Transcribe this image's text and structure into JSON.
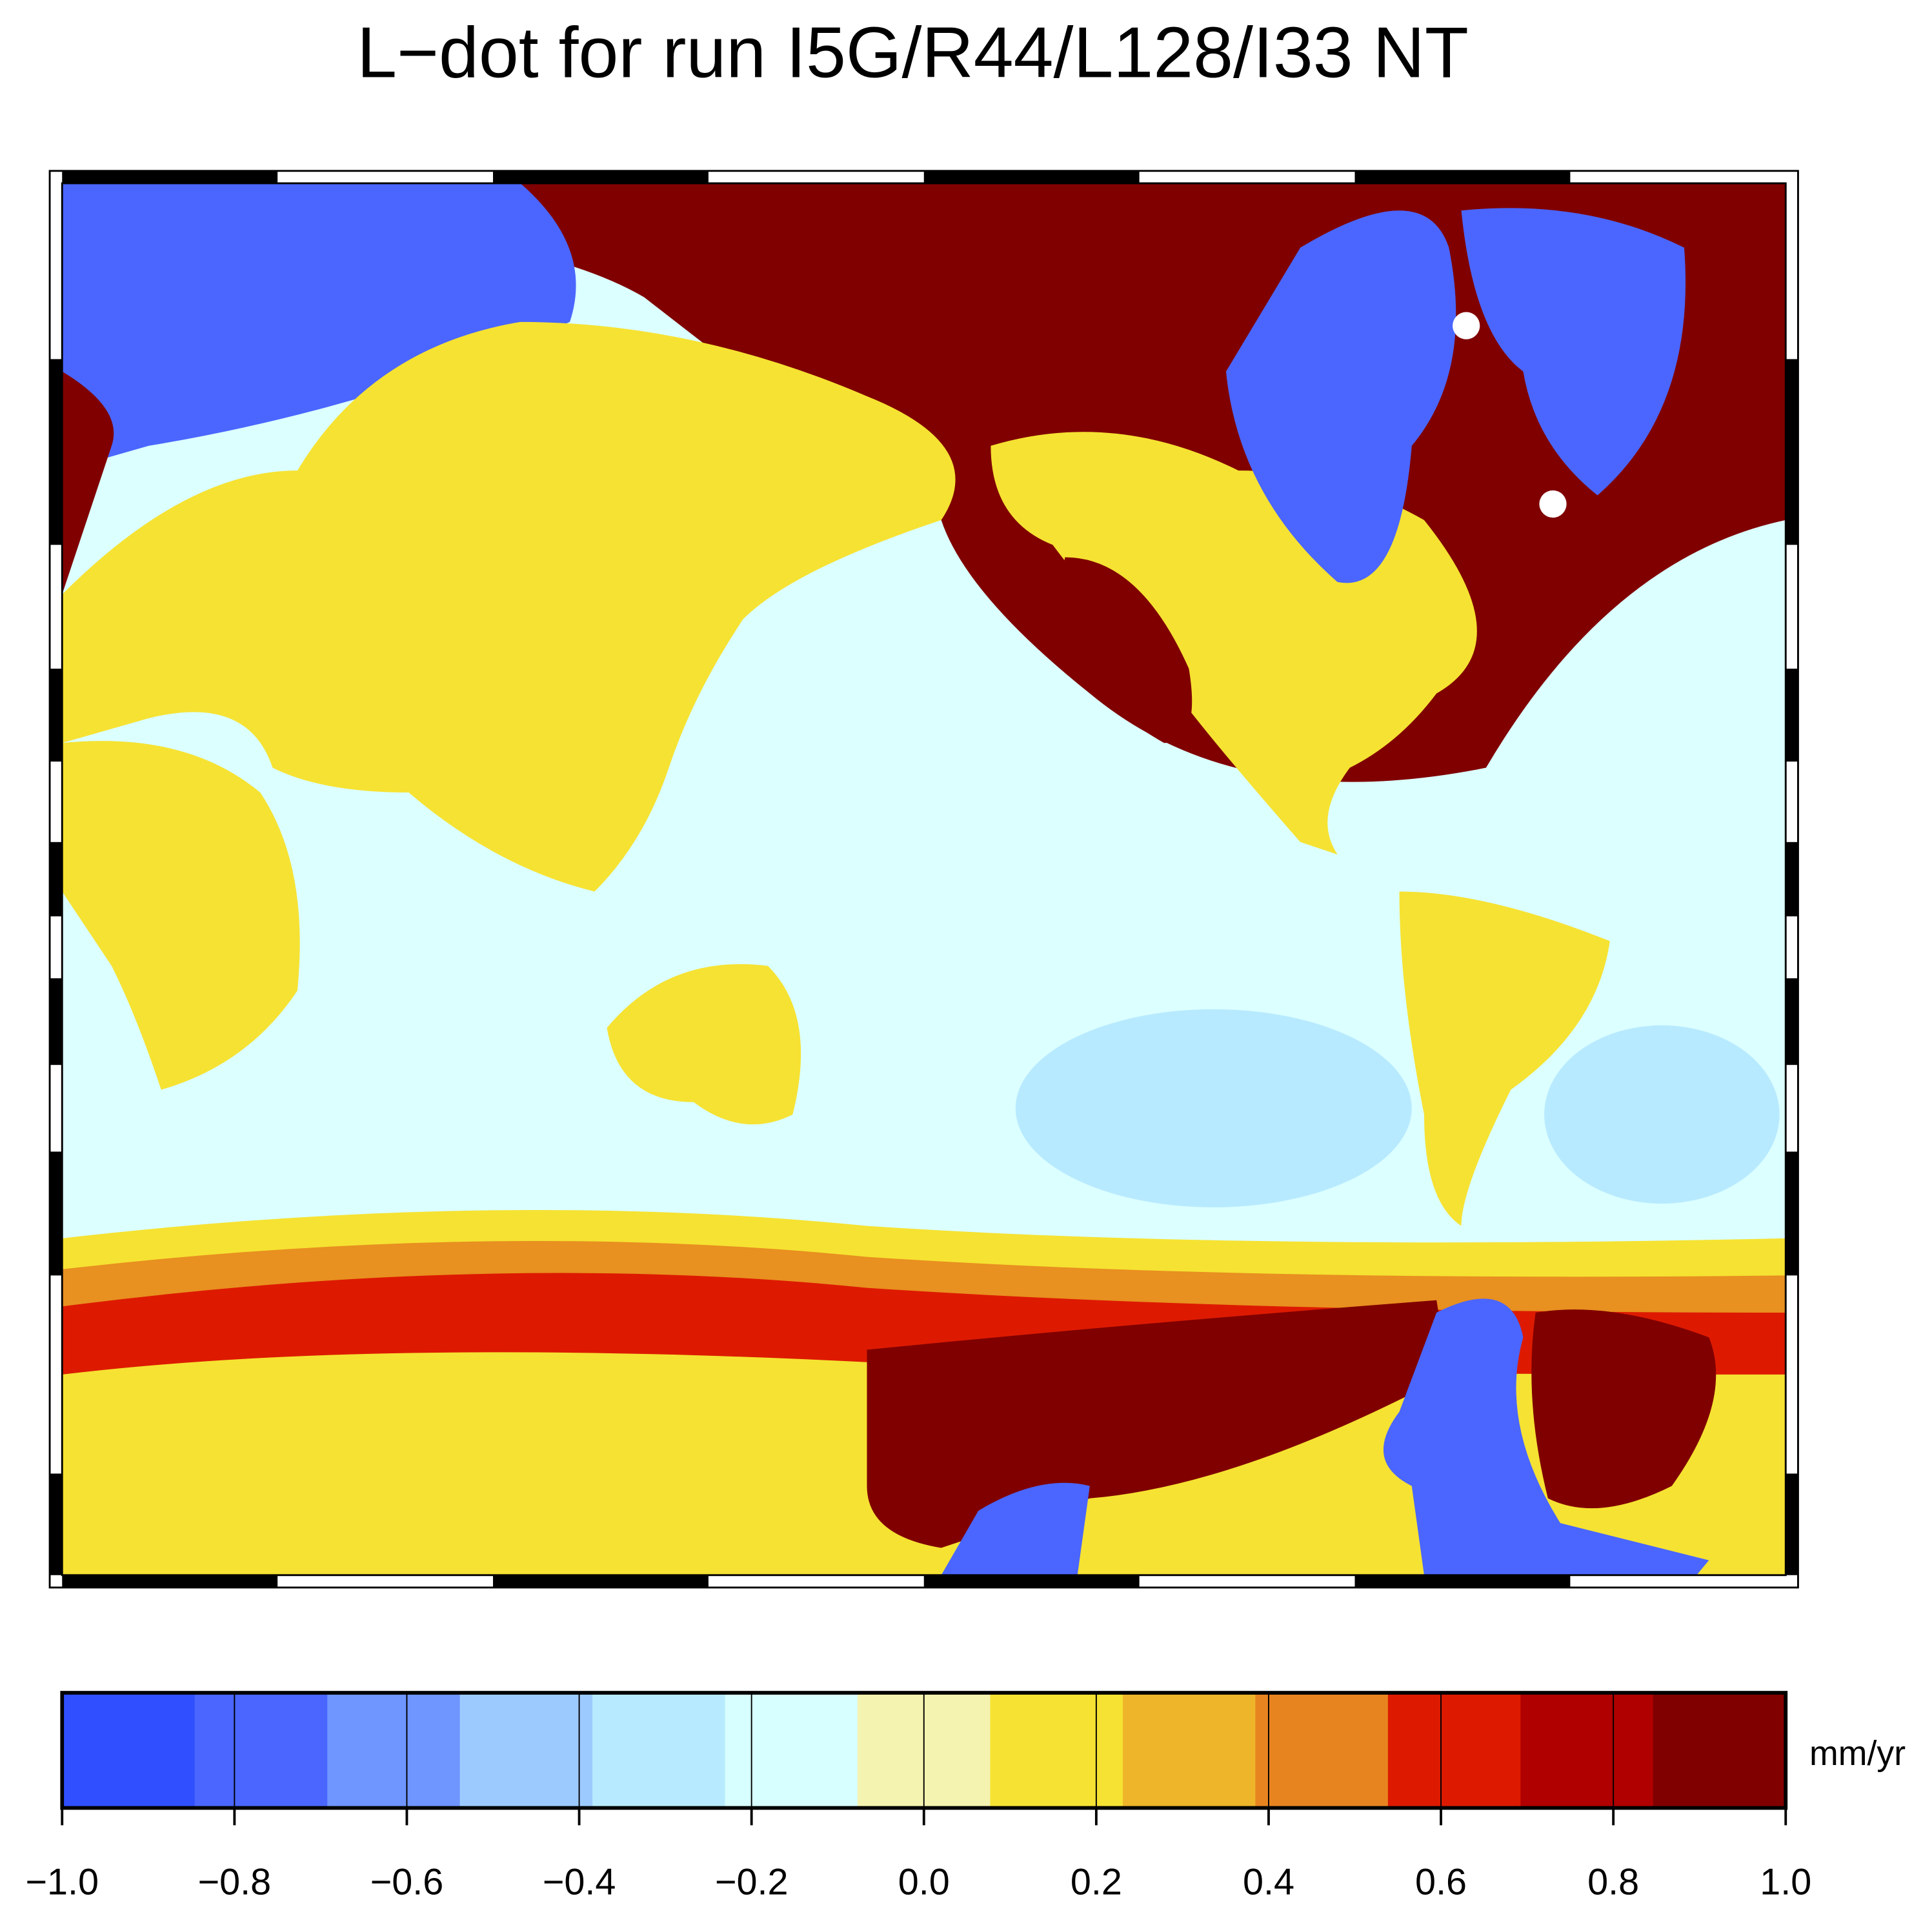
{
  "title": "L−dot for run I5G/R44/L128/I33 NT",
  "colorbar": {
    "label": "mm/yr",
    "range": [
      -1,
      1
    ],
    "colors": [
      "#3050ff",
      "#4a66ff",
      "#6f95ff",
      "#9ccaff",
      "#b8eaff",
      "#d8ffff",
      "#f5f3b0",
      "#f6e232",
      "#eeb52a",
      "#e88420",
      "#dd1a00",
      "#b00000",
      "#800000"
    ],
    "ticks": [
      {
        "value": -1,
        "label": "−1.0"
      },
      {
        "value": -0.8,
        "label": "−0.8"
      },
      {
        "value": -0.6,
        "label": "−0.6"
      },
      {
        "value": -0.4,
        "label": "−0.4"
      },
      {
        "value": -0.2,
        "label": "−0.2"
      },
      {
        "value": 0,
        "label": "0.0"
      },
      0.2,
      0.4,
      0.6,
      0.8,
      {
        "value": 1,
        "label": "1.0"
      }
    ]
  }
}
